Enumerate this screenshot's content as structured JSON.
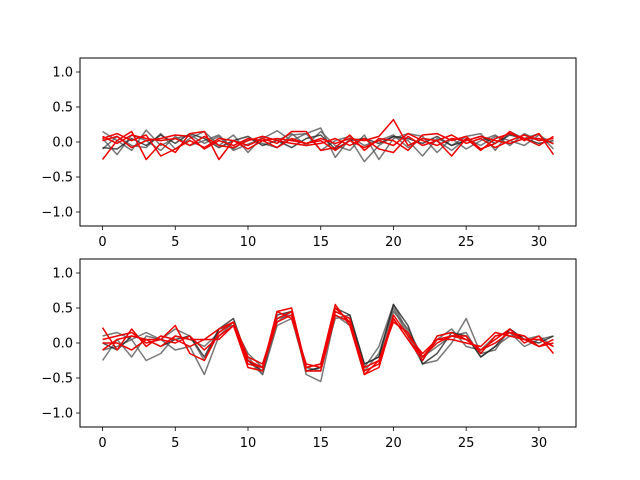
{
  "chart_data": [
    {
      "type": "line",
      "title": "",
      "xlabel": "",
      "ylabel": "",
      "xlim": [
        -1.55,
        32.55
      ],
      "ylim": [
        -1.2,
        1.2
      ],
      "xticks": [
        0,
        5,
        10,
        15,
        20,
        25,
        30
      ],
      "yticks": [
        -1.0,
        -0.5,
        0.0,
        0.5,
        1.0
      ],
      "ytick_labels": [
        "−1.0",
        "−0.5",
        "0.0",
        "0.5",
        "1.0"
      ],
      "grid": false,
      "x": [
        0,
        1,
        2,
        3,
        4,
        5,
        6,
        7,
        8,
        9,
        10,
        11,
        12,
        13,
        14,
        15,
        16,
        17,
        18,
        19,
        20,
        21,
        22,
        23,
        24,
        25,
        26,
        27,
        28,
        29,
        30,
        31
      ],
      "series": [
        {
          "color": "#555555",
          "values": [
            0.15,
            0.02,
            -0.12,
            0.17,
            -0.05,
            0.05,
            0.1,
            -0.02,
            0.08,
            -0.12,
            -0.03,
            0.05,
            0.16,
            0.02,
            0.12,
            0.2,
            -0.22,
            0.05,
            -0.28,
            -0.05,
            0.08,
            0.02,
            -0.2,
            0.05,
            -0.05,
            0.08,
            0.12,
            -0.12,
            0.15,
            0.05,
            0.12,
            -0.1
          ]
        },
        {
          "color": "#555555",
          "values": [
            -0.1,
            0.08,
            -0.05,
            -0.08,
            0.12,
            -0.1,
            0.05,
            0.15,
            -0.05,
            0.1,
            -0.15,
            0.08,
            0.02,
            0.12,
            -0.05,
            0.15,
            -0.05,
            -0.12,
            0.1,
            -0.25,
            0.05,
            0.12,
            0.08,
            -0.15,
            0.05,
            -0.1,
            0.02,
            0.1,
            -0.05,
            0.12,
            0.02,
            0.05
          ]
        },
        {
          "color": "#555555",
          "values": [
            0.05,
            -0.18,
            0.1,
            0.02,
            -0.12,
            0.08,
            -0.05,
            0.02,
            0.1,
            -0.1,
            0.05,
            -0.02,
            -0.08,
            0.1,
            0.12,
            -0.12,
            0.02,
            0.08,
            -0.05,
            0.02,
            0.1,
            -0.08,
            0.05,
            0.02,
            -0.12,
            0.05,
            -0.05,
            0.08,
            0.02,
            -0.05,
            0.1,
            -0.03
          ]
        },
        {
          "color": "#222222",
          "values": [
            -0.08,
            -0.1,
            0.05,
            -0.05,
            0.1,
            -0.02,
            0.12,
            0.05,
            -0.08,
            0.02,
            0.08,
            -0.05,
            0.02,
            -0.08,
            0.05,
            0.1,
            -0.1,
            0.02,
            0.05,
            -0.02,
            0.08,
            0.05,
            -0.02,
            0.08,
            -0.05,
            0.02,
            0.08,
            -0.02,
            0.1,
            0.05,
            -0.02,
            0.02
          ]
        },
        {
          "color": "#ee0000",
          "values": [
            -0.25,
            0.02,
            0.15,
            -0.25,
            -0.02,
            -0.15,
            0.12,
            0.15,
            -0.25,
            0.02,
            -0.05,
            0.05,
            -0.02,
            0.15,
            0.15,
            -0.12,
            -0.08,
            0.1,
            -0.12,
            0.05,
            0.02,
            -0.12,
            0.1,
            0.12,
            0.02,
            0.08,
            -0.1,
            -0.02,
            0.15,
            0.02,
            0.12,
            -0.18
          ]
        },
        {
          "color": "#ee0000",
          "values": [
            0.05,
            0.12,
            0.02,
            0.1,
            -0.2,
            -0.1,
            0.02,
            -0.08,
            0.05,
            0.02,
            -0.1,
            0.02,
            0.05,
            0.02,
            -0.02,
            0.05,
            -0.02,
            0.05,
            0.02,
            0.08,
            0.32,
            -0.05,
            0.05,
            0.02,
            -0.2,
            0.05,
            -0.12,
            0.05,
            0.12,
            0.05,
            0.05,
            -0.02
          ]
        },
        {
          "color": "#ee0000",
          "values": [
            0.08,
            -0.02,
            0.1,
            0.05,
            0.02,
            0.05,
            -0.05,
            0.08,
            -0.05,
            -0.08,
            0.02,
            0.08,
            0.02,
            -0.02,
            -0.05,
            -0.02,
            0.05,
            -0.05,
            0.05,
            -0.1,
            -0.15,
            0.08,
            -0.05,
            0.02,
            0.1,
            -0.02,
            0.05,
            -0.08,
            0.02,
            0.1,
            0.02,
            0.05
          ]
        },
        {
          "color": "#ee0000",
          "values": [
            0.02,
            0.08,
            -0.08,
            0.02,
            0.05,
            0.1,
            0.08,
            -0.1,
            0.02,
            -0.05,
            0.05,
            0.02,
            -0.08,
            0.05,
            -0.02,
            0.02,
            -0.12,
            0.02,
            -0.08,
            0.02,
            -0.05,
            0.12,
            0.02,
            -0.05,
            0.05,
            0.02,
            0.08,
            0.02,
            -0.02,
            0.05,
            -0.05,
            0.08
          ]
        }
      ]
    },
    {
      "type": "line",
      "title": "",
      "xlabel": "",
      "ylabel": "",
      "xlim": [
        -1.55,
        32.55
      ],
      "ylim": [
        -1.2,
        1.2
      ],
      "xticks": [
        0,
        5,
        10,
        15,
        20,
        25,
        30
      ],
      "yticks": [
        -1.0,
        -0.5,
        0.0,
        0.5,
        1.0
      ],
      "ytick_labels": [
        "−1.0",
        "−0.5",
        "0.0",
        "0.5",
        "1.0"
      ],
      "grid": false,
      "x": [
        0,
        1,
        2,
        3,
        4,
        5,
        6,
        7,
        8,
        9,
        10,
        11,
        12,
        13,
        14,
        15,
        16,
        17,
        18,
        19,
        20,
        21,
        22,
        23,
        24,
        25,
        26,
        27,
        28,
        29,
        30,
        31
      ],
      "series": [
        {
          "color": "#555555",
          "values": [
            -0.25,
            0.05,
            -0.2,
            0.1,
            0.05,
            -0.1,
            -0.05,
            -0.45,
            0.1,
            0.3,
            -0.25,
            -0.45,
            0.3,
            0.45,
            -0.45,
            -0.55,
            0.4,
            0.25,
            -0.4,
            -0.15,
            0.5,
            0.1,
            -0.3,
            -0.25,
            0.0,
            0.35,
            -0.15,
            -0.1,
            0.2,
            0.05,
            0.1,
            -0.05
          ]
        },
        {
          "color": "#555555",
          "values": [
            0.1,
            0.15,
            0.05,
            0.15,
            0.05,
            0.2,
            0.1,
            -0.25,
            0.2,
            0.25,
            -0.15,
            -0.35,
            0.35,
            0.4,
            -0.35,
            -0.4,
            0.45,
            0.35,
            -0.35,
            -0.05,
            0.55,
            0.15,
            -0.25,
            0.05,
            0.2,
            -0.05,
            -0.1,
            0.1,
            0.15,
            -0.05,
            0.05,
            0.1
          ]
        },
        {
          "color": "#555555",
          "values": [
            -0.1,
            -0.05,
            0.05,
            -0.25,
            -0.15,
            0.1,
            0.05,
            -0.05,
            0.15,
            0.3,
            -0.2,
            -0.45,
            0.25,
            0.35,
            -0.4,
            -0.35,
            0.35,
            0.4,
            -0.3,
            -0.2,
            0.45,
            0.2,
            -0.2,
            -0.05,
            0.1,
            0.15,
            -0.2,
            -0.05,
            0.1,
            0.1,
            -0.05,
            0.05
          ]
        },
        {
          "color": "#222222",
          "values": [
            0.0,
            -0.1,
            0.1,
            0.05,
            -0.05,
            0.05,
            0.1,
            -0.2,
            0.2,
            0.35,
            -0.25,
            -0.4,
            0.4,
            0.45,
            -0.4,
            -0.35,
            0.5,
            0.4,
            -0.3,
            -0.2,
            0.55,
            0.25,
            -0.3,
            -0.15,
            0.15,
            0.1,
            -0.2,
            -0.05,
            0.2,
            0.05,
            0.0,
            0.1
          ]
        },
        {
          "color": "#ee0000",
          "values": [
            0.22,
            -0.1,
            0.2,
            -0.05,
            0.1,
            0.05,
            -0.05,
            0.05,
            0.05,
            0.25,
            -0.35,
            -0.4,
            0.45,
            0.5,
            -0.35,
            -0.3,
            0.55,
            0.25,
            -0.45,
            -0.35,
            0.35,
            0.05,
            -0.25,
            0.1,
            0.15,
            0.05,
            -0.1,
            0.05,
            0.2,
            0.0,
            0.1,
            -0.15
          ]
        },
        {
          "color": "#ee0000",
          "values": [
            0.05,
            0.1,
            0.15,
            0.0,
            0.05,
            0.25,
            -0.15,
            -0.25,
            0.15,
            0.3,
            -0.25,
            -0.35,
            0.45,
            0.35,
            -0.3,
            -0.35,
            0.5,
            0.3,
            -0.4,
            -0.3,
            0.4,
            0.1,
            -0.15,
            0.05,
            0.1,
            0.1,
            -0.15,
            0.1,
            0.15,
            0.05,
            -0.05,
            0.0
          ]
        },
        {
          "color": "#ee0000",
          "values": [
            -0.1,
            0.05,
            0.1,
            0.05,
            -0.05,
            0.1,
            0.05,
            0.05,
            0.2,
            0.3,
            -0.2,
            -0.3,
            0.35,
            0.45,
            -0.35,
            -0.3,
            0.45,
            0.35,
            -0.45,
            -0.25,
            0.3,
            0.15,
            -0.2,
            0.05,
            0.05,
            0.0,
            -0.05,
            0.15,
            0.1,
            0.05,
            0.05,
            -0.05
          ]
        },
        {
          "color": "#ee0000",
          "values": [
            0.0,
            0.0,
            -0.1,
            0.05,
            0.05,
            0.0,
            0.1,
            -0.1,
            0.1,
            0.25,
            -0.3,
            -0.35,
            0.3,
            0.4,
            -0.4,
            -0.4,
            0.4,
            0.3,
            -0.35,
            -0.25,
            0.35,
            0.05,
            -0.2,
            0.0,
            0.1,
            0.05,
            -0.1,
            0.0,
            0.15,
            0.1,
            -0.05,
            0.05
          ]
        }
      ]
    }
  ]
}
